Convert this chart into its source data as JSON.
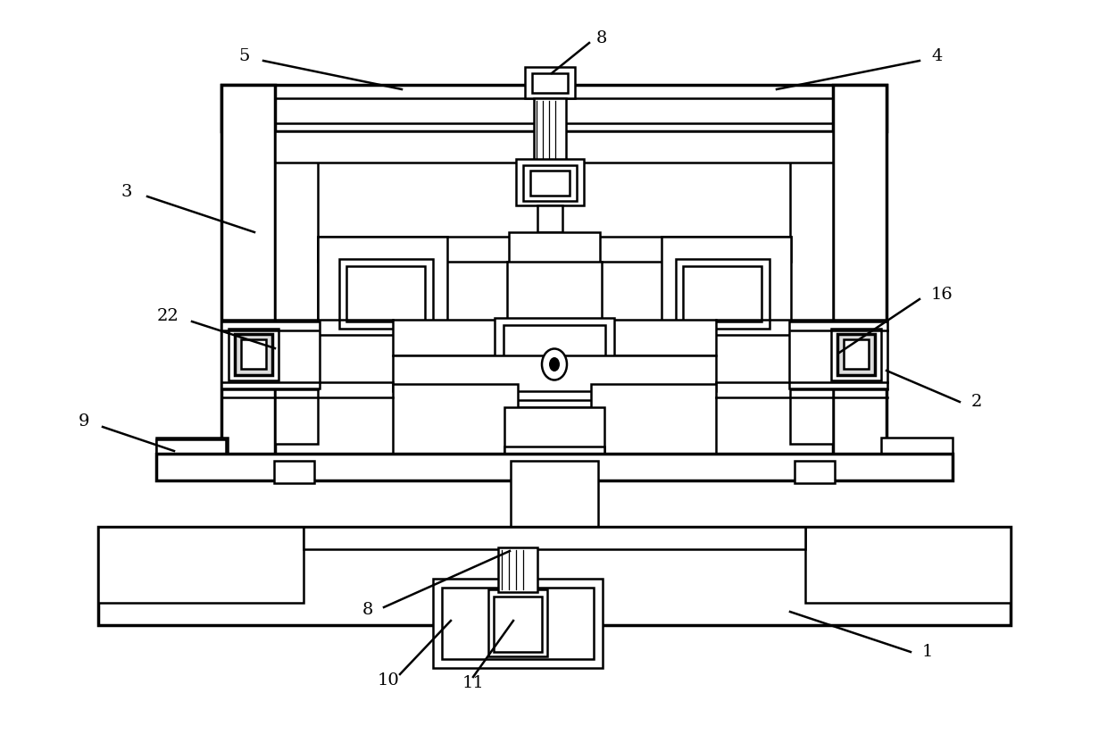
{
  "bg_color": "#ffffff",
  "line_color": "#000000",
  "lw": 1.8,
  "lw2": 2.5,
  "fig_width": 12.4,
  "fig_height": 8.32
}
